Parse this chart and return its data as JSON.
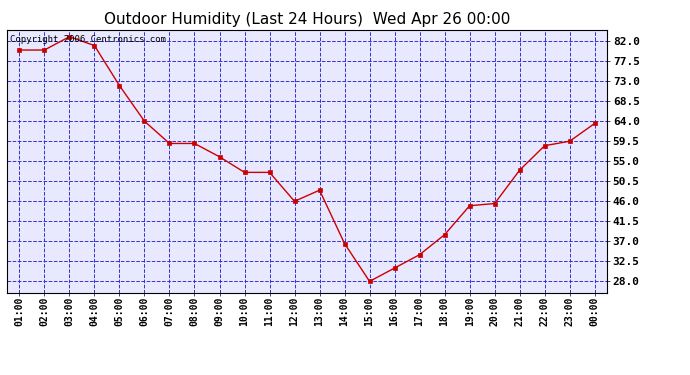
{
  "title": "Outdoor Humidity (Last 24 Hours)  Wed Apr 26 00:00",
  "copyright": "Copyright 2006 Centronics.com",
  "x_labels": [
    "01:00",
    "02:00",
    "03:00",
    "04:00",
    "05:00",
    "06:00",
    "07:00",
    "08:00",
    "09:00",
    "10:00",
    "11:00",
    "12:00",
    "13:00",
    "14:00",
    "15:00",
    "16:00",
    "17:00",
    "18:00",
    "19:00",
    "20:00",
    "21:00",
    "22:00",
    "23:00",
    "00:00"
  ],
  "y_values": [
    80.0,
    80.0,
    83.0,
    81.0,
    72.0,
    64.0,
    59.0,
    59.0,
    56.0,
    52.5,
    52.5,
    46.0,
    48.5,
    36.5,
    28.0,
    31.0,
    34.0,
    38.5,
    45.0,
    45.5,
    53.0,
    58.5,
    59.5,
    63.5
  ],
  "ylim_min": 25.5,
  "ylim_max": 84.5,
  "yticks": [
    28.0,
    32.5,
    37.0,
    41.5,
    46.0,
    50.5,
    55.0,
    59.5,
    64.0,
    68.5,
    73.0,
    77.5,
    82.0
  ],
  "line_color": "#cc0000",
  "marker_color": "#cc0000",
  "fig_bg_color": "#ffffff",
  "plot_bg_color": "#e8e8ff",
  "grid_color": "#3333cc",
  "border_color": "#000000",
  "title_fontsize": 11,
  "copyright_fontsize": 6.5,
  "tick_fontsize": 7,
  "ytick_fontsize": 8
}
